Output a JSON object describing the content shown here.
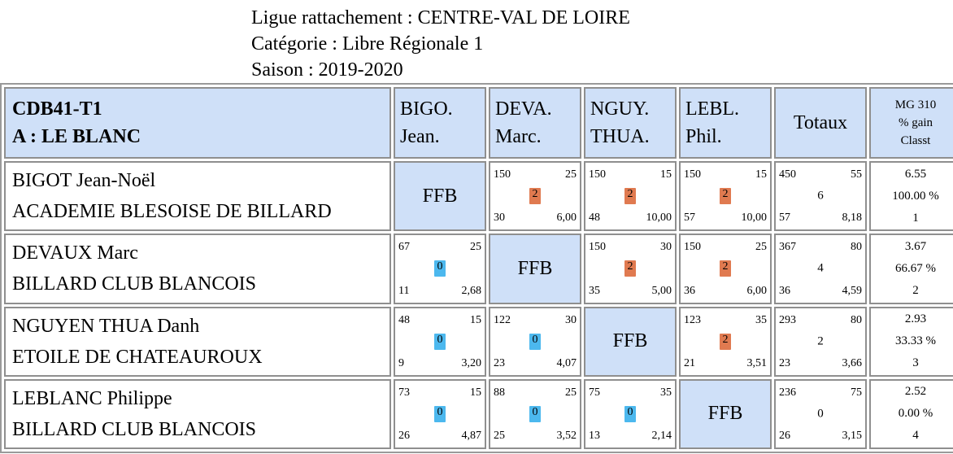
{
  "header": {
    "line1": "Ligue rattachement : CENTRE-VAL DE LOIRE",
    "line2": "Catégorie : Libre Régionale 1",
    "line3": "Saison : 2019-2020"
  },
  "colors": {
    "header_bg": "#cfe0f8",
    "win": "#e07a50",
    "loss": "#4cb8ee"
  },
  "table": {
    "team_code": "CDB41-T1",
    "team_name": "A : LE BLANC",
    "columns": [
      {
        "l1": "BIGO.",
        "l2": "Jean."
      },
      {
        "l1": "DEVA.",
        "l2": "Marc."
      },
      {
        "l1": "NGUY.",
        "l2": "THUA."
      },
      {
        "l1": "LEBL.",
        "l2": "Phil."
      }
    ],
    "totals_label": "Totaux",
    "mg_label": "MG 310",
    "gain_label": "% gain",
    "rank_label": "Classt",
    "self_label": "FFB",
    "rows": [
      {
        "name": "BIGOT Jean-Noël",
        "club": "ACADEMIE BLESOISE DE BILLARD",
        "cells": [
          null,
          {
            "points": "150",
            "target": "25",
            "result": "2",
            "innings": "30",
            "avg": "6,00"
          },
          {
            "points": "150",
            "target": "15",
            "result": "2",
            "innings": "48",
            "avg": "10,00"
          },
          {
            "points": "150",
            "target": "15",
            "result": "2",
            "innings": "57",
            "avg": "10,00"
          }
        ],
        "totals": {
          "points": "450",
          "target": "55",
          "result": "6",
          "innings": "57",
          "avg": "8,18"
        },
        "mg": "6.55",
        "gain": "100.00 %",
        "rank": "1"
      },
      {
        "name": "DEVAUX Marc",
        "club": "BILLARD CLUB BLANCOIS",
        "cells": [
          {
            "points": "67",
            "target": "25",
            "result": "0",
            "innings": "11",
            "avg": "2,68"
          },
          null,
          {
            "points": "150",
            "target": "30",
            "result": "2",
            "innings": "35",
            "avg": "5,00"
          },
          {
            "points": "150",
            "target": "25",
            "result": "2",
            "innings": "36",
            "avg": "6,00"
          }
        ],
        "totals": {
          "points": "367",
          "target": "80",
          "result": "4",
          "innings": "36",
          "avg": "4,59"
        },
        "mg": "3.67",
        "gain": "66.67 %",
        "rank": "2"
      },
      {
        "name": "NGUYEN THUA Danh",
        "club": "ETOILE DE CHATEAUROUX",
        "cells": [
          {
            "points": "48",
            "target": "15",
            "result": "0",
            "innings": "9",
            "avg": "3,20"
          },
          {
            "points": "122",
            "target": "30",
            "result": "0",
            "innings": "23",
            "avg": "4,07"
          },
          null,
          {
            "points": "123",
            "target": "35",
            "result": "2",
            "innings": "21",
            "avg": "3,51"
          }
        ],
        "totals": {
          "points": "293",
          "target": "80",
          "result": "2",
          "innings": "23",
          "avg": "3,66"
        },
        "mg": "2.93",
        "gain": "33.33 %",
        "rank": "3"
      },
      {
        "name": "LEBLANC Philippe",
        "club": "BILLARD CLUB BLANCOIS",
        "cells": [
          {
            "points": "73",
            "target": "15",
            "result": "0",
            "innings": "26",
            "avg": "4,87"
          },
          {
            "points": "88",
            "target": "25",
            "result": "0",
            "innings": "25",
            "avg": "3,52"
          },
          {
            "points": "75",
            "target": "35",
            "result": "0",
            "innings": "13",
            "avg": "2,14"
          },
          null
        ],
        "totals": {
          "points": "236",
          "target": "75",
          "result": "0",
          "innings": "26",
          "avg": "3,15"
        },
        "mg": "2.52",
        "gain": "0.00 %",
        "rank": "4"
      }
    ]
  }
}
